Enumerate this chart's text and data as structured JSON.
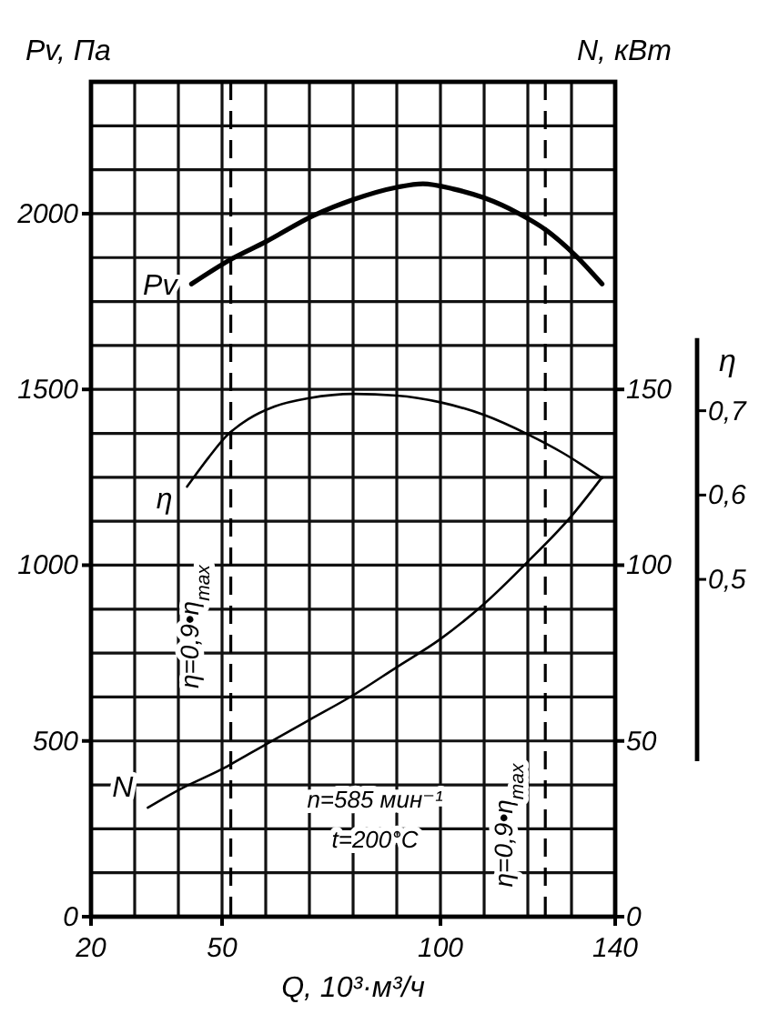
{
  "chart_data": {
    "type": "line",
    "xlabel": "Q, 10³·м³/ч",
    "ylabel": "Pv, Па",
    "y2label": "N, кВт",
    "y3label": "η",
    "annotations": [
      "n=585 мин⁻¹",
      "t=200°C",
      {
        "text": "η=0,9•η$_{max}$",
        "x": 52,
        "y": 825
      },
      {
        "text": "η=0,9•η$_{max}$",
        "x": 124,
        "y": 260
      }
    ],
    "xlim": [
      20,
      140
    ],
    "ylim": [
      0,
      2375
    ],
    "y2lim": [
      0,
      237.5
    ],
    "y3lim": [
      0.1,
      1.09
    ],
    "xticks": [
      20,
      {
        "value": 30,
        "label": null
      },
      {
        "value": 40,
        "label": null
      },
      50,
      {
        "value": 60,
        "label": null
      },
      {
        "value": 70,
        "label": null
      },
      {
        "value": 80,
        "label": null
      },
      {
        "value": 90,
        "label": null
      },
      100,
      {
        "value": 110,
        "label": null
      },
      {
        "value": 120,
        "label": null
      },
      {
        "value": 130,
        "label": null
      },
      140
    ],
    "yticks": [
      0,
      {
        "value": 125,
        "label": null
      },
      {
        "value": 250,
        "label": null
      },
      {
        "value": 375,
        "label": null
      },
      500,
      {
        "value": 625,
        "label": null
      },
      {
        "value": 750,
        "label": null
      },
      {
        "value": 875,
        "label": null
      },
      1000,
      {
        "value": 1125,
        "label": null
      },
      {
        "value": 1250,
        "label": null
      },
      {
        "value": 1375,
        "label": null
      },
      1500,
      {
        "value": 1625,
        "label": null
      },
      {
        "value": 1750,
        "label": null
      },
      {
        "value": 1875,
        "label": null
      },
      2000,
      {
        "value": 2125,
        "label": null
      },
      {
        "value": 2250,
        "label": null
      }
    ],
    "y2ticks": [
      0,
      50,
      100,
      150
    ],
    "y3ticks": [
      {
        "value": 0.5,
        "label": "0,5"
      },
      {
        "value": 0.6,
        "label": "0,6"
      },
      {
        "value": 0.7,
        "label": "0,7"
      }
    ],
    "grid": true,
    "ref_lines": [
      {
        "axis": "x",
        "value": 52,
        "line_style": "dashed"
      },
      {
        "axis": "x",
        "value": 124,
        "line_style": "dashed"
      }
    ],
    "series": [
      {
        "name": "Pv",
        "color": "#000000",
        "x": [
          43,
          52,
          60,
          71,
          80,
          90,
          96,
          103,
          110,
          118,
          124,
          131,
          137
        ],
        "values": [
          1800,
          1870,
          1920,
          1995,
          2040,
          2075,
          2085,
          2070,
          2045,
          2000,
          1955,
          1880,
          1800
        ]
      },
      {
        "name": "η",
        "color": "#000000",
        "axis": "y3",
        "x": [
          42,
          47,
          51,
          56,
          62,
          70,
          80,
          90,
          100,
          110,
          120,
          128,
          137
        ],
        "values": [
          0.61,
          0.645,
          0.67,
          0.69,
          0.705,
          0.715,
          0.72,
          0.718,
          0.71,
          0.695,
          0.672,
          0.65,
          0.62
        ]
      },
      {
        "name": "N",
        "color": "#000000",
        "axis": "y2",
        "x": [
          33,
          40,
          50,
          60,
          70,
          80,
          90,
          100,
          110,
          120,
          130,
          137
        ],
        "values": [
          31,
          36,
          42,
          49,
          56,
          63,
          71,
          79,
          89,
          101,
          114,
          125
        ]
      }
    ]
  }
}
